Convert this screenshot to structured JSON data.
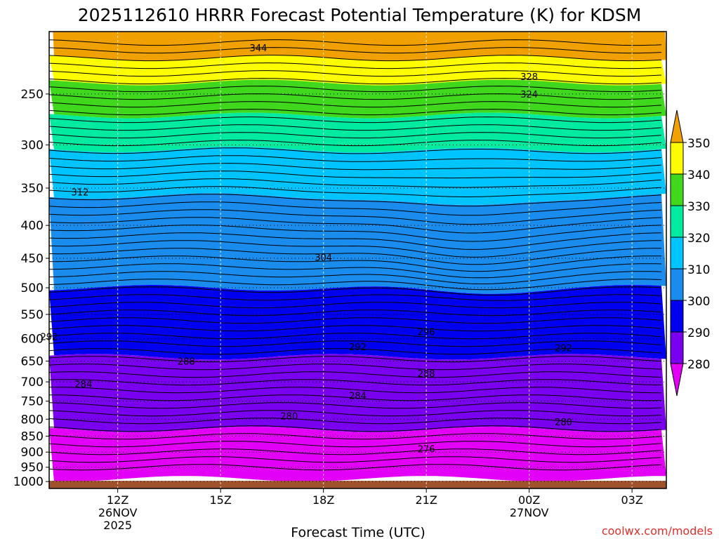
{
  "chart_data": {
    "type": "heatmap",
    "title": "2025112610 HRRR Forecast Potential Temperature (K) for KDSM",
    "xlabel": "Forecast Time (UTC)",
    "ylabel": "",
    "x_ticks": [
      {
        "label": "12Z",
        "sub1": "26NOV",
        "sub2": "2025",
        "hour": 12
      },
      {
        "label": "15Z",
        "sub1": "",
        "sub2": "",
        "hour": 15
      },
      {
        "label": "18Z",
        "sub1": "",
        "sub2": "",
        "hour": 18
      },
      {
        "label": "21Z",
        "sub1": "",
        "sub2": "",
        "hour": 21
      },
      {
        "label": "00Z",
        "sub1": "27NOV",
        "sub2": "",
        "hour": 24
      },
      {
        "label": "03Z",
        "sub1": "",
        "sub2": "",
        "hour": 27
      }
    ],
    "xlim_hours": [
      10,
      28
    ],
    "y_ticks": [
      "250",
      "300",
      "350",
      "400",
      "450",
      "500",
      "550",
      "600",
      "650",
      "700",
      "750",
      "800",
      "850",
      "900",
      "950",
      "1000"
    ],
    "y_tick_values": [
      250,
      300,
      350,
      400,
      450,
      500,
      550,
      600,
      650,
      700,
      750,
      800,
      850,
      900,
      950,
      1000
    ],
    "ylim_hpa": [
      200,
      1025
    ],
    "colorbar": {
      "labels": [
        "350",
        "340",
        "330",
        "320",
        "310",
        "300",
        "290",
        "280"
      ],
      "levels": [
        {
          "min": 340,
          "max": 350,
          "color": "#fdfd00"
        },
        {
          "min": 330,
          "max": 340,
          "color": "#3fd81c"
        },
        {
          "min": 320,
          "max": 330,
          "color": "#00eaa0"
        },
        {
          "min": 310,
          "max": 320,
          "color": "#00c4ff"
        },
        {
          "min": 300,
          "max": 310,
          "color": "#1a8cee"
        },
        {
          "min": 290,
          "max": 300,
          "color": "#0000f0"
        },
        {
          "min": 280,
          "max": 290,
          "color": "#7a00f0"
        }
      ],
      "over_color": "#f0a000",
      "under_color": "#e300f7"
    },
    "ground_color": "#a0522d",
    "bands_by_pressure": [
      {
        "p_bottom": 220,
        "color": "#f0a000",
        "theta": "350+"
      },
      {
        "p_bottom": 240,
        "color": "#fdfd00",
        "theta": "340-350"
      },
      {
        "p_bottom": 270,
        "color": "#3fd81c",
        "theta": "330-340"
      },
      {
        "p_bottom": 305,
        "color": "#00eaa0",
        "theta": "320-330"
      },
      {
        "p_bottom": 360,
        "color": "#00c4ff",
        "theta": "310-320"
      },
      {
        "p_bottom": 500,
        "color": "#1a8cee",
        "theta": "300-310"
      },
      {
        "p_bottom": 640,
        "color": "#0000f0",
        "theta": "290-300"
      },
      {
        "p_bottom": 830,
        "color": "#7a00f0",
        "theta": "280-290"
      },
      {
        "p_bottom": 990,
        "color": "#e300f7",
        "theta": "below 280"
      }
    ],
    "contour_labels": [
      {
        "text": "344",
        "hour": 16.1,
        "hpa": 212
      },
      {
        "text": "328",
        "hour": 24.0,
        "hpa": 235
      },
      {
        "text": "324",
        "hour": 24.0,
        "hpa": 250
      },
      {
        "text": "312",
        "hour": 10.9,
        "hpa": 355
      },
      {
        "text": "304",
        "hour": 18.0,
        "hpa": 448
      },
      {
        "text": "296",
        "hour": 21.0,
        "hpa": 585
      },
      {
        "text": "292",
        "hour": 10.0,
        "hpa": 595
      },
      {
        "text": "292",
        "hour": 19.0,
        "hpa": 617
      },
      {
        "text": "292",
        "hour": 25.0,
        "hpa": 620
      },
      {
        "text": "288",
        "hour": 14.0,
        "hpa": 650
      },
      {
        "text": "288",
        "hour": 21.0,
        "hpa": 679
      },
      {
        "text": "284",
        "hour": 11.0,
        "hpa": 705
      },
      {
        "text": "284",
        "hour": 19.0,
        "hpa": 735
      },
      {
        "text": "280",
        "hour": 17.0,
        "hpa": 790
      },
      {
        "text": "280",
        "hour": 25.0,
        "hpa": 808
      },
      {
        "text": "276",
        "hour": 21.0,
        "hpa": 890
      }
    ]
  },
  "credit": "coolwx.com/models"
}
